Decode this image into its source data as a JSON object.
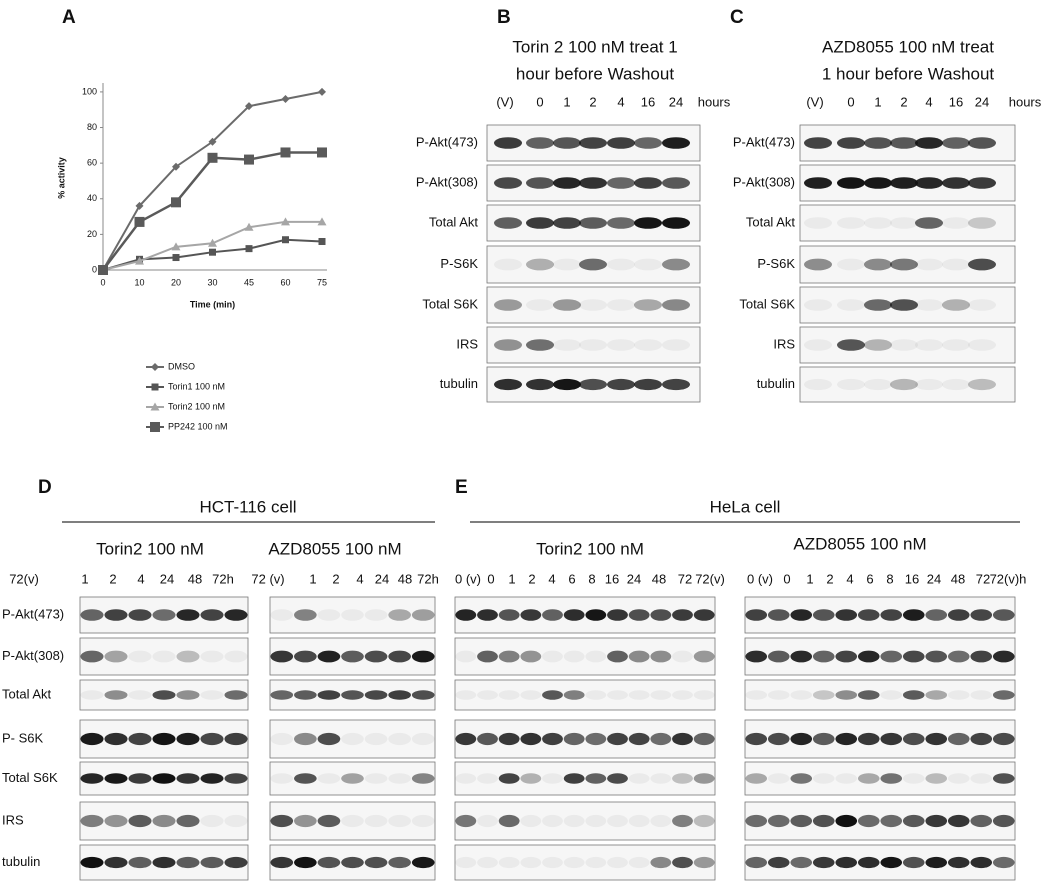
{
  "chart_data": {
    "type": "line",
    "panel": "A",
    "xlabel": "Time (min)",
    "ylabel": "% activity",
    "categories": [
      "0",
      "10",
      "20",
      "30",
      "45",
      "60",
      "75"
    ],
    "ylim": [
      0,
      105
    ],
    "yticks": [
      0,
      20,
      40,
      60,
      80,
      100
    ],
    "series": [
      {
        "name": "DMSO",
        "color": "#6b6b6b",
        "marker": "diamond",
        "values": [
          0,
          36,
          58,
          72,
          92,
          96,
          100
        ]
      },
      {
        "name": "Torin1 100 nM",
        "color": "#555555",
        "marker": "square",
        "values": [
          0,
          6,
          7,
          10,
          12,
          17,
          16
        ]
      },
      {
        "name": "Torin2 100 nM",
        "color": "#a6a6a6",
        "marker": "triangle",
        "values": [
          0,
          5,
          13,
          15,
          24,
          27,
          27
        ]
      },
      {
        "name": "PP242 100 nM",
        "color": "#5a5a5a",
        "marker": "bigsquare",
        "values": [
          0,
          27,
          38,
          63,
          62,
          66,
          66
        ]
      }
    ]
  },
  "panels": [
    {
      "label": "B",
      "title_lines": [
        "Torin 2 100 nM treat 1",
        "hour before Washout"
      ],
      "lanes": [
        "(V)",
        "0",
        "1",
        "2",
        "4",
        "16",
        "24"
      ],
      "unit": "hours",
      "rows": [
        "P-Akt(473)",
        "P-Akt(308)",
        "Total Akt",
        "P-S6K",
        "Total S6K",
        "IRS",
        "tubulin"
      ]
    },
    {
      "label": "C",
      "title_lines": [
        "AZD8055 100 nM treat",
        "1 hour before Washout"
      ],
      "lanes": [
        "(V)",
        "0",
        "1",
        "2",
        "4",
        "16",
        "24"
      ],
      "unit": "hours",
      "rows": [
        "P-Akt(473)",
        "P-Akt(308)",
        "Total Akt",
        "P-S6K",
        "Total S6K",
        "IRS",
        "tubulin"
      ]
    },
    {
      "label": "D",
      "group": "HCT-116 cell",
      "rows": [
        "P-Akt(473)",
        "P-Akt(308)",
        "Total Akt",
        "P- S6K",
        "Total S6K",
        "IRS",
        "tubulin"
      ],
      "sets": [
        {
          "title": "Torin2 100 nM",
          "lanes": [
            "72(v)",
            "1",
            "2",
            "4",
            "24",
            "48",
            "72h"
          ]
        },
        {
          "title": "AZD8055 100 nM",
          "lanes": [
            "72 (v)",
            "1",
            "2",
            "4",
            "24",
            "48",
            "72h"
          ]
        }
      ]
    },
    {
      "label": "E",
      "group": "HeLa cell",
      "sets": [
        {
          "title": "Torin2 100 nM",
          "lanes": [
            "0 (v)",
            "0",
            "1",
            "2",
            "4",
            "6",
            "8",
            "16",
            "24",
            "48",
            "72",
            "72(v)"
          ]
        },
        {
          "title": "AZD8055 100 nM",
          "lanes": [
            "0 (v)",
            "0",
            "1",
            "2",
            "4",
            "6",
            "8",
            "16",
            "24",
            "48",
            "72",
            "72(v)h"
          ]
        }
      ]
    }
  ]
}
